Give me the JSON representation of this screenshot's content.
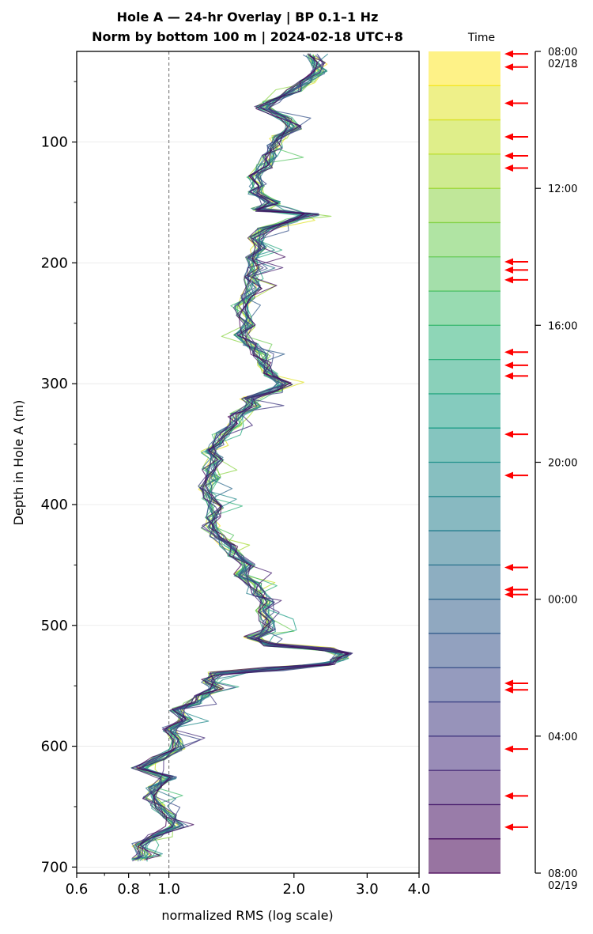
{
  "chart_data": {
    "type": "line",
    "title": [
      "Hole A — 24-hr Overlay  |  BP 0.1–1 Hz",
      "Norm by bottom 100 m  |  2024-02-18 UTC+8"
    ],
    "xlabel": "normalized RMS  (log scale)",
    "ylabel": "Depth in Hole A (m)",
    "xscale": "log",
    "xlim": [
      0.6,
      4.0
    ],
    "ylim": [
      705,
      25
    ],
    "xticks": [
      0.6,
      0.8,
      1.0,
      2.0,
      3.0,
      4.0
    ],
    "xtick_labels": [
      "0.6",
      "0.8",
      "1.0",
      "2.0",
      "3.0",
      "4.0"
    ],
    "yticks": [
      100,
      200,
      300,
      400,
      500,
      600,
      700
    ],
    "ytick_labels": [
      "100",
      "200",
      "300",
      "400",
      "500",
      "600",
      "700"
    ],
    "reference_line_x": 1.0,
    "grid": "horizontal",
    "colormap": "viridis",
    "n_series": 24,
    "profile": {
      "depth": [
        28,
        35,
        42,
        50,
        58,
        66,
        72,
        80,
        88,
        96,
        104,
        112,
        120,
        128,
        136,
        142,
        150,
        156,
        160,
        165,
        172,
        180,
        188,
        196,
        204,
        212,
        220,
        228,
        236,
        244,
        252,
        260,
        268,
        276,
        284,
        292,
        300,
        306,
        312,
        318,
        326,
        334,
        342,
        350,
        356,
        362,
        370,
        378,
        386,
        394,
        402,
        410,
        418,
        426,
        434,
        442,
        450,
        458,
        466,
        474,
        480,
        488,
        496,
        504,
        510,
        516,
        520,
        524,
        528,
        532,
        536,
        540,
        546,
        552,
        558,
        564,
        570,
        578,
        586,
        594,
        602,
        610,
        618,
        626,
        634,
        642,
        650,
        658,
        666,
        674,
        682,
        690,
        694
      ],
      "value": [
        2.2,
        2.3,
        2.3,
        2.15,
        2.0,
        1.75,
        1.68,
        1.9,
        2.0,
        1.85,
        1.8,
        1.75,
        1.7,
        1.6,
        1.65,
        1.62,
        1.78,
        1.65,
        2.2,
        1.95,
        1.7,
        1.62,
        1.65,
        1.6,
        1.62,
        1.58,
        1.6,
        1.55,
        1.5,
        1.52,
        1.55,
        1.5,
        1.58,
        1.65,
        1.7,
        1.75,
        1.9,
        1.8,
        1.55,
        1.6,
        1.45,
        1.45,
        1.35,
        1.3,
        1.25,
        1.3,
        1.25,
        1.28,
        1.22,
        1.25,
        1.3,
        1.28,
        1.25,
        1.3,
        1.38,
        1.45,
        1.55,
        1.5,
        1.6,
        1.65,
        1.72,
        1.68,
        1.72,
        1.75,
        1.58,
        1.75,
        2.4,
        2.65,
        2.55,
        2.4,
        1.8,
        1.3,
        1.25,
        1.3,
        1.2,
        1.15,
        1.05,
        1.1,
        1.0,
        1.05,
        1.05,
        0.95,
        0.85,
        1.0,
        0.92,
        0.9,
        0.95,
        1.0,
        1.05,
        0.92,
        0.85,
        0.88,
        0.85
      ]
    },
    "time_axis": {
      "header": "Time",
      "ticks": [
        {
          "fraction": 0.0,
          "label": "08:00\n02/18"
        },
        {
          "fraction": 0.1667,
          "label": "12:00"
        },
        {
          "fraction": 0.3333,
          "label": "16:00"
        },
        {
          "fraction": 0.5,
          "label": "20:00"
        },
        {
          "fraction": 0.6667,
          "label": "00:00"
        },
        {
          "fraction": 0.8333,
          "label": "04:00"
        },
        {
          "fraction": 1.0,
          "label": "08:00\n02/19"
        }
      ],
      "arrow_fractions": [
        0.003,
        0.019,
        0.063,
        0.104,
        0.127,
        0.142,
        0.256,
        0.266,
        0.278,
        0.366,
        0.382,
        0.395,
        0.466,
        0.516,
        0.628,
        0.655,
        0.661,
        0.769,
        0.777,
        0.849,
        0.906,
        0.944
      ],
      "arrow_color": "#ff0000"
    }
  }
}
